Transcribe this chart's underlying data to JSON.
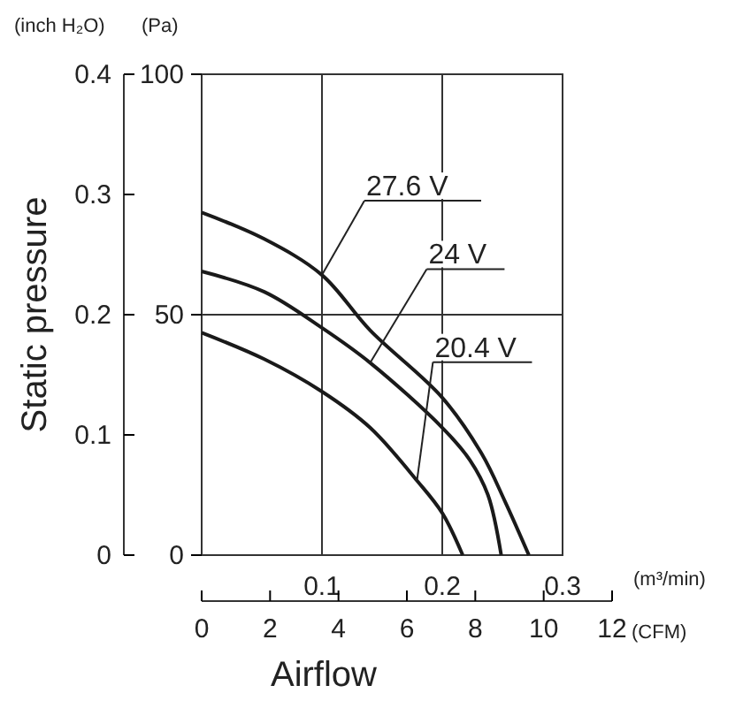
{
  "chart_data": {
    "type": "line",
    "xlabel": "Airflow",
    "ylabel": "Static pressure",
    "annotations": [
      "(inch H₂O)",
      "(Pa)",
      "(m³/min)",
      "(CFM)"
    ],
    "xlim": [
      0,
      0.3
    ],
    "xticks": [
      0.1,
      0.2,
      0.3
    ],
    "x2lim": [
      0,
      12
    ],
    "x2ticks": [
      0,
      2,
      4,
      6,
      8,
      10,
      12
    ],
    "ylim": [
      0,
      0.4
    ],
    "yticks": [
      0,
      0.1,
      0.2,
      0.3,
      0.4
    ],
    "y2lim": [
      0,
      100
    ],
    "y2ticks": [
      0,
      50,
      100
    ],
    "grid": true,
    "marker": "none",
    "line_style": "solid",
    "series": [
      {
        "name": "27.6 V",
        "color": "#1a1a1a",
        "x": [
          0,
          0.052,
          0.1,
          0.14,
          0.2,
          0.233,
          0.252,
          0.272
        ],
        "values": [
          0.285,
          0.263,
          0.233,
          0.187,
          0.131,
          0.084,
          0.045,
          0
        ]
      },
      {
        "name": "24 V",
        "color": "#1a1a1a",
        "x": [
          0,
          0.052,
          0.1,
          0.14,
          0.2,
          0.223,
          0.238,
          0.249
        ],
        "values": [
          0.236,
          0.219,
          0.189,
          0.16,
          0.106,
          0.079,
          0.05,
          0
        ]
      },
      {
        "name": "20.4 V",
        "color": "#1a1a1a",
        "x": [
          0,
          0.052,
          0.1,
          0.14,
          0.179,
          0.2,
          0.217
        ],
        "values": [
          0.185,
          0.163,
          0.136,
          0.106,
          0.062,
          0.035,
          0
        ]
      }
    ]
  }
}
